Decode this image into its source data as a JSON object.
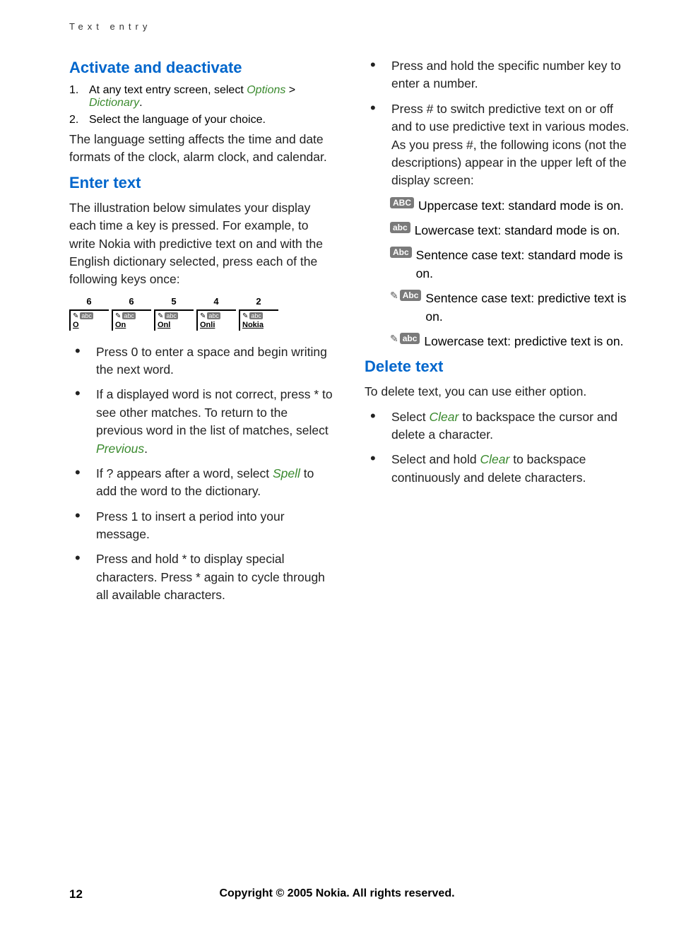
{
  "header": "Text entry",
  "left": {
    "h1": "Activate and deactivate",
    "step1_pre": "At any text entry screen, select ",
    "step1_opt": "Options",
    "step1_gt": " > ",
    "step1_dict": "Dictionary",
    "step1_dot": ".",
    "step2": "Select the language of your choice.",
    "para1": "The language setting affects the time and date formats of the clock, alarm clock, and calendar.",
    "h2": "Enter text",
    "para2": "The illustration below simulates your display each time a key is pressed. For example, to write Nokia with predictive text on and with the English dictionary selected, press each of the following keys once:",
    "keys": [
      {
        "num": "6",
        "word": "O",
        "abc": "abc"
      },
      {
        "num": "6",
        "word": "On",
        "abc": "abc"
      },
      {
        "num": "5",
        "word": "Onl",
        "abc": "abc"
      },
      {
        "num": "4",
        "word": "Onli",
        "abc": "abc"
      },
      {
        "num": "2",
        "word": "Nokia",
        "abc": "abc"
      }
    ],
    "b1": "Press 0 to enter a space and begin writing the next word.",
    "b2_a": "If a displayed word is not correct, press * to see other matches. To return to the previous word in the list of matches, select ",
    "b2_prev": "Previous",
    "b2_dot": ".",
    "b3_a": "If ? appears after a word, select ",
    "b3_spell": "Spell",
    "b3_b": " to add the word to the dictionary.",
    "b4": "Press 1 to insert a period into your message.",
    "b5": "Press and hold * to display special characters. Press * again to cycle through all available characters."
  },
  "right": {
    "b1": "Press and hold the specific number key to enter a number.",
    "b2": "Press # to switch predictive text on or off and to use predictive text in various modes. As you press #, the following icons (not the descriptions) appear in the upper left of the display screen:",
    "icons": [
      {
        "pencil": false,
        "label": "ABC",
        "text": "Uppercase text: standard mode is on."
      },
      {
        "pencil": false,
        "label": "abc",
        "text": "Lowercase text: standard mode is on."
      },
      {
        "pencil": false,
        "label": "Abc",
        "text": "Sentence case text: standard mode is on."
      },
      {
        "pencil": true,
        "label": "Abc",
        "text": "Sentence case text: predictive text is on."
      },
      {
        "pencil": true,
        "label": "abc",
        "text": "Lowercase text: predictive text is on."
      }
    ],
    "h3": "Delete text",
    "para3": "To delete text, you can use either option.",
    "d1_a": "Select ",
    "d1_clear": "Clear",
    "d1_b": " to backspace the cursor and delete a character.",
    "d2_a": "Select and hold ",
    "d2_clear": "Clear",
    "d2_b": " to backspace continuously and delete characters."
  },
  "footer": {
    "page": "12",
    "copy": "Copyright © 2005 Nokia. All rights reserved."
  }
}
